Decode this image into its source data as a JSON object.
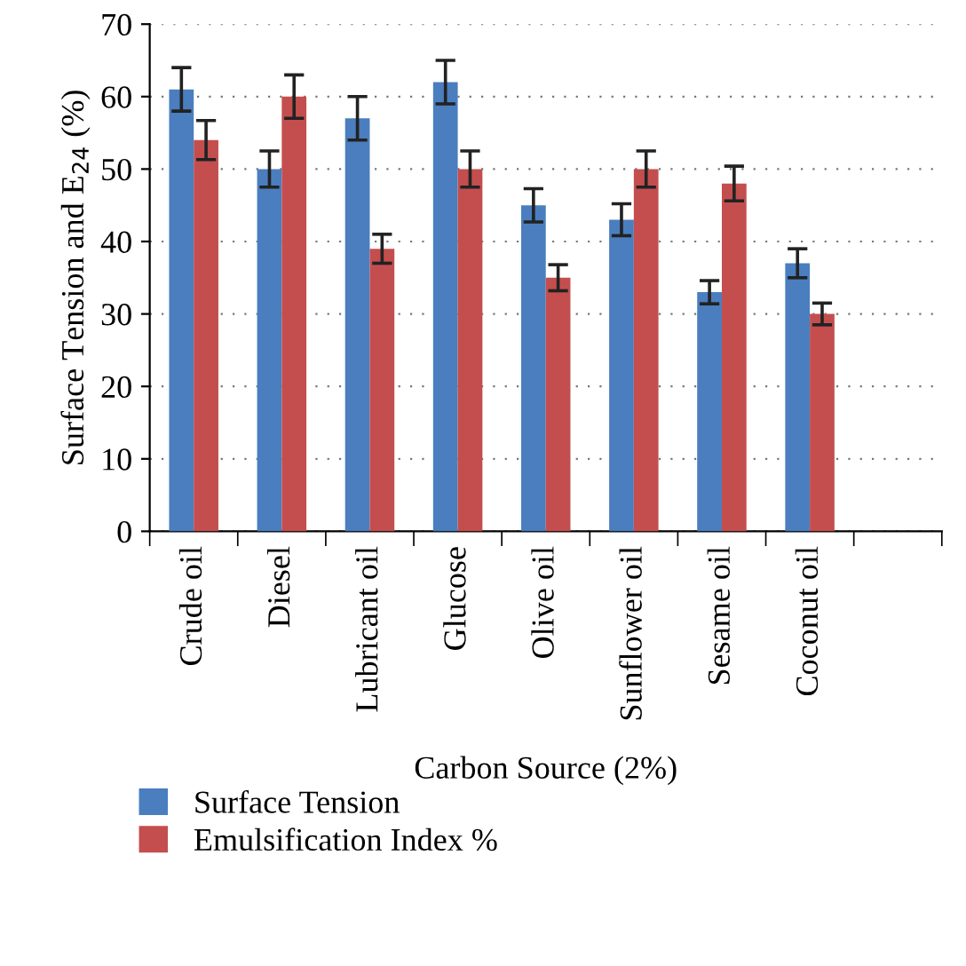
{
  "chart_data": {
    "type": "bar",
    "xlabel": "Carbon Source (2%)",
    "ylabel": "Surface Tension and E$_{24}$ (%)",
    "categories": [
      "Crude oil",
      "Diesel",
      "Lubricant oil",
      "Glucose",
      "Olive oil",
      "Sunflower oil",
      "Sesame oil",
      "Coconut oil",
      null
    ],
    "series": [
      {
        "name": "Surface Tension",
        "color": "#4a7ebf",
        "values": [
          61,
          50,
          57,
          62,
          45,
          43,
          33,
          37,
          null
        ],
        "errors": [
          3,
          2.5,
          3,
          3,
          2.3,
          2.2,
          1.6,
          2,
          null
        ]
      },
      {
        "name": "Emulsification Index %",
        "color": "#c44e4e",
        "values": [
          54,
          60,
          39,
          50,
          35,
          50,
          48,
          30,
          null
        ],
        "errors": [
          2.7,
          3,
          2,
          2.5,
          1.8,
          2.5,
          2.4,
          1.5,
          null
        ]
      }
    ],
    "ylim": [
      0,
      70
    ],
    "yticks": [
      0,
      10,
      20,
      30,
      40,
      50,
      60,
      70
    ],
    "grid": "y",
    "legend": "bottom"
  }
}
